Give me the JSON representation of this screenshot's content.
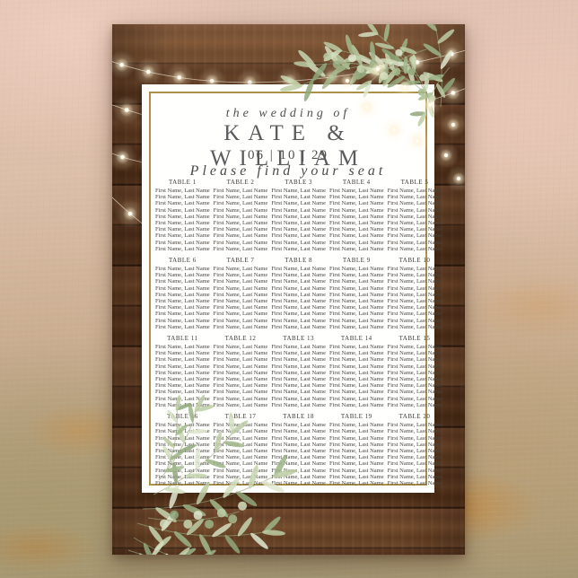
{
  "poster": {
    "eyebrow": "the wedding of",
    "couple_names": "KATE & WILLIAM",
    "wedding_date": "06 | 10 | 29",
    "subtitle": "Please find your seat"
  },
  "seating": {
    "guest_line": "First Name, Last Name",
    "seats_per_table": 10,
    "tables": [
      {
        "label": "TABLE 1"
      },
      {
        "label": "TABLE 2"
      },
      {
        "label": "TABLE 3"
      },
      {
        "label": "TABLE 4"
      },
      {
        "label": "TABLE 5"
      },
      {
        "label": "TABLE 6"
      },
      {
        "label": "TABLE 7"
      },
      {
        "label": "TABLE 8"
      },
      {
        "label": "TABLE 9"
      },
      {
        "label": "TABLE 10"
      },
      {
        "label": "TABLE 11"
      },
      {
        "label": "TABLE 12"
      },
      {
        "label": "TABLE 13"
      },
      {
        "label": "TABLE 14"
      },
      {
        "label": "TABLE 15"
      },
      {
        "label": "TABLE 16"
      },
      {
        "label": "TABLE 17"
      },
      {
        "label": "TABLE 18"
      },
      {
        "label": "TABLE 19"
      },
      {
        "label": "TABLE 20"
      }
    ]
  },
  "colors": {
    "frame_gold": "#ac9248",
    "panel_white": "#fffffe",
    "heading_gray": "#5c5c5e",
    "names_ink": "#47433c"
  }
}
